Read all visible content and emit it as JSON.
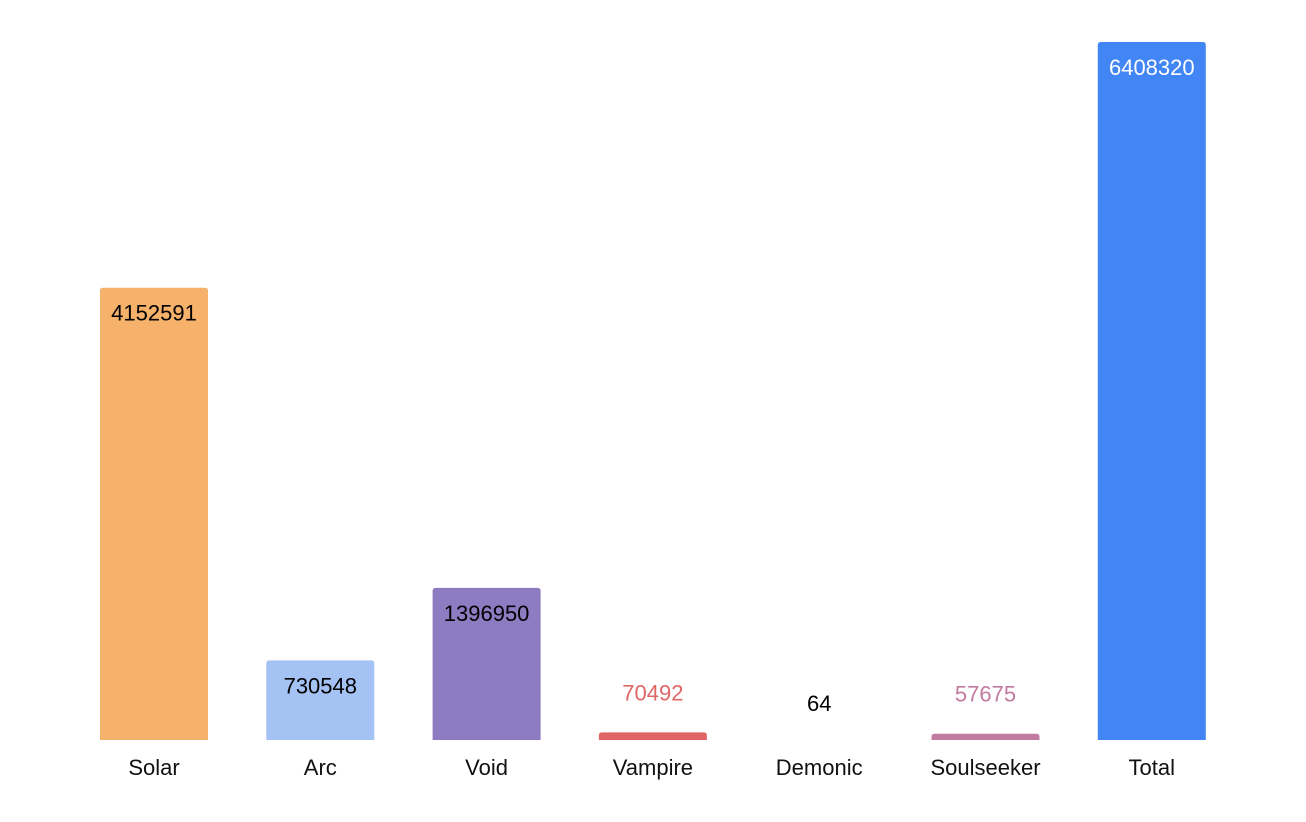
{
  "chart_data": {
    "type": "bar",
    "categories": [
      "Solar",
      "Arc",
      "Void",
      "Vampire",
      "Demonic",
      "Soulseeker",
      "Total"
    ],
    "values": [
      4152591,
      730548,
      1396950,
      70492,
      64,
      57675,
      6408320
    ],
    "colors": [
      "#f6b26b",
      "#a4c2f4",
      "#8e7cc3",
      "#e06666",
      "#e6a9a9",
      "#c27ba0",
      "#4285f4"
    ],
    "label_colors": [
      "#000000",
      "#000000",
      "#000000",
      "#e06666",
      "#000000",
      "#c27ba0",
      "#ffffff"
    ],
    "title": "",
    "xlabel": "",
    "ylabel": "",
    "ylim": [
      0,
      6408320
    ],
    "grid": false,
    "legend": "none"
  }
}
